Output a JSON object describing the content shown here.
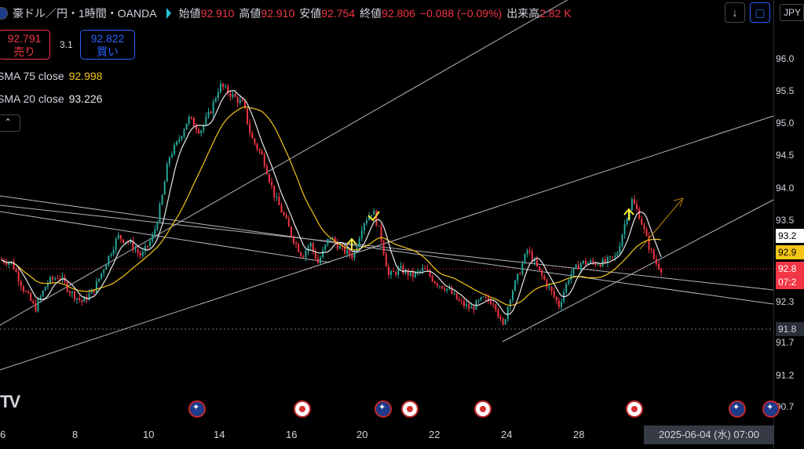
{
  "header": {
    "title": "豪ドル／円・1時間・OANDA",
    "open_label": "始値",
    "open_value": "92.910",
    "high_label": "高値",
    "high_value": "92.910",
    "low_label": "安値",
    "low_value": "92.754",
    "close_label": "終値",
    "close_value": "92.806",
    "change": "−0.088 (−0.09%)",
    "volume_label": "出来高",
    "volume_value": "2.82 K"
  },
  "trade": {
    "sell_price": "92.791",
    "sell_label": "売り",
    "spread": "3.1",
    "buy_price": "92.822",
    "buy_label": "買い"
  },
  "indicators": [
    {
      "name": "SMA 75 close",
      "value": "92.998",
      "color": "#f5c518"
    },
    {
      "name": "SMA 20 close",
      "value": "93.226",
      "color": "#e8e8e8"
    }
  ],
  "collapse_icon": "chevron-up-icon",
  "currency_button": "JPY",
  "price_axis": [
    "96.0",
    "95.5",
    "95.0",
    "94.5",
    "94.0",
    "93.5",
    "92.3",
    "91.7",
    "91.2",
    "90.7"
  ],
  "price_tags": [
    {
      "text": "93.2",
      "bg": "#ffffff",
      "fg": "#000000"
    },
    {
      "text": "92.9",
      "bg": "#f5c518",
      "fg": "#000000"
    },
    {
      "text": "92.8",
      "bg": "#f23645",
      "fg": "#ffffff"
    },
    {
      "text": "07:2",
      "bg": "#f23645",
      "fg": "#ffffff"
    },
    {
      "text": "91.8",
      "bg": "#2a2e39",
      "fg": "#d1d4dc"
    }
  ],
  "time_axis": [
    "6",
    "8",
    "10",
    "14",
    "16",
    "20",
    "22",
    "24",
    "28"
  ],
  "crosshair_date": "2025-06-04 (水)   07:00",
  "logo": "TV",
  "colors": {
    "up": "#26a69a",
    "down": "#f23645",
    "sma75": "#f5c518",
    "sma20": "#e8e8e8",
    "trendline": "#b2b5be"
  },
  "chart_data": {
    "type": "candlestick",
    "title": "豪ドル／円・1時間・OANDA",
    "series": [
      {
        "name": "SMA 75 close",
        "last": 92.998
      },
      {
        "name": "SMA 20 close",
        "last": 93.226
      }
    ],
    "approx_close_path": [
      {
        "x": "6",
        "y": 92.9
      },
      {
        "x": "8",
        "y": 92.6
      },
      {
        "x": "10",
        "y": 93.1
      },
      {
        "x": "14",
        "y": 95.6
      },
      {
        "x": "16",
        "y": 93.4
      },
      {
        "x": "20",
        "y": 93.8
      },
      {
        "x": "22",
        "y": 92.8
      },
      {
        "x": "24",
        "y": 92.3
      },
      {
        "x": "28",
        "y": 92.9
      },
      {
        "x": "2025-06-04",
        "y": 92.806
      }
    ],
    "ylim": [
      90.7,
      96.3
    ]
  }
}
